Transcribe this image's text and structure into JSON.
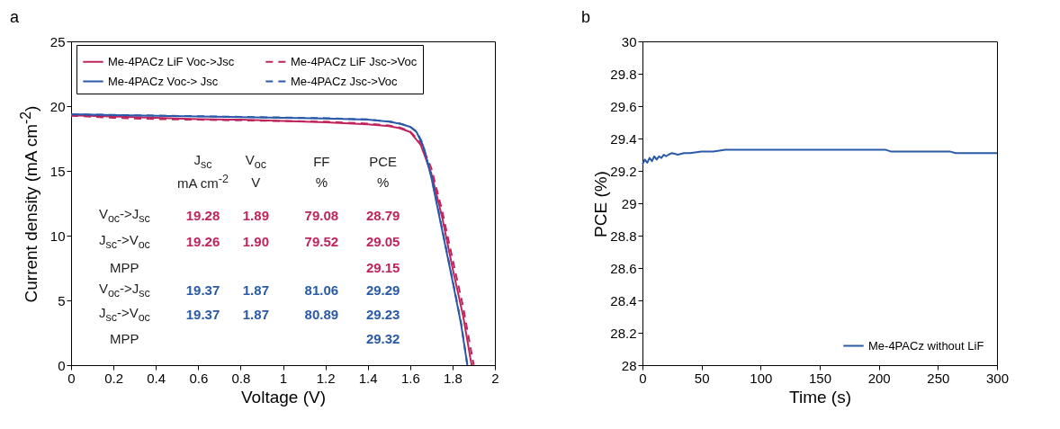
{
  "chart_data": [
    {
      "type": "line",
      "title": "a",
      "xlabel": "Voltage (V)",
      "ylabel": "Current density (mA cm$^{-2}$)",
      "xlim": [
        0,
        2
      ],
      "xticks": [
        0,
        0.2,
        0.4,
        0.6,
        0.8,
        1,
        1.2,
        1.4,
        1.6,
        1.8,
        2
      ],
      "ylim": [
        0,
        25
      ],
      "yticks": [
        0,
        5,
        10,
        15,
        20,
        25
      ],
      "legend": "top",
      "series": [
        {
          "name": "Me-4PACz LiF Voc->Jsc",
          "color": "#c0245c",
          "line_style": "solid",
          "x": [
            0,
            0.2,
            0.4,
            0.6,
            0.8,
            1,
            1.2,
            1.4,
            1.5,
            1.55,
            1.6,
            1.65,
            1.7,
            1.75,
            1.8,
            1.85,
            1.89
          ],
          "values": [
            19.28,
            19.2,
            19.1,
            19.0,
            18.95,
            18.85,
            18.75,
            18.6,
            18.45,
            18.3,
            18.0,
            17.0,
            14.8,
            11.5,
            7.5,
            3.8,
            0
          ]
        },
        {
          "name": "Me-4PACz LiF Jsc->Voc",
          "color": "#c0245c",
          "line_style": "dashed",
          "x": [
            0,
            0.2,
            0.4,
            0.6,
            0.8,
            1,
            1.2,
            1.4,
            1.5,
            1.55,
            1.6,
            1.65,
            1.7,
            1.75,
            1.8,
            1.85,
            1.9
          ],
          "values": [
            19.26,
            19.1,
            19.0,
            18.95,
            18.9,
            18.85,
            18.8,
            18.65,
            18.5,
            18.35,
            18.05,
            17.2,
            15.2,
            12.0,
            8.2,
            4.5,
            0
          ]
        },
        {
          "name": "Me-4PACz Voc-> Jsc",
          "color": "#2a5aa8",
          "line_style": "solid",
          "x": [
            0,
            0.2,
            0.4,
            0.6,
            0.8,
            1,
            1.2,
            1.4,
            1.5,
            1.55,
            1.6,
            1.63,
            1.66,
            1.7,
            1.75,
            1.8,
            1.84,
            1.87
          ],
          "values": [
            19.37,
            19.3,
            19.25,
            19.2,
            19.15,
            19.1,
            19.05,
            18.95,
            18.8,
            18.65,
            18.4,
            18.0,
            17.0,
            14.5,
            10.5,
            6.5,
            3.2,
            0
          ]
        },
        {
          "name": "Me-4PACz Jsc->Voc",
          "color": "#2a5aa8",
          "line_style": "dashed",
          "x": [
            0,
            0.2,
            0.4,
            0.6,
            0.8,
            1,
            1.2,
            1.4,
            1.5,
            1.55,
            1.6,
            1.63,
            1.66,
            1.7,
            1.75,
            1.8,
            1.84,
            1.87
          ],
          "values": [
            19.37,
            19.32,
            19.27,
            19.22,
            19.17,
            19.12,
            19.07,
            18.97,
            18.82,
            18.67,
            18.42,
            18.05,
            17.1,
            14.6,
            10.6,
            6.6,
            3.3,
            0
          ]
        }
      ],
      "annotations": [
        "J$_{sc}$",
        "V$_{oc}$",
        "FF",
        "PCE",
        "mA cm$^{-2}$",
        "V",
        "%",
        "%",
        "V$_{oc}$->J$_{sc}$",
        "19.28",
        "1.89",
        "79.08",
        "28.79",
        "J$_{sc}$->V$_{oc}$",
        "19.26",
        "1.90",
        "79.52",
        "29.05",
        "MPP",
        "29.15",
        "V$_{oc}$->J$_{sc}$",
        "19.37",
        "1.87",
        "81.06",
        "29.29",
        "J$_{sc}$->V$_{oc}$",
        "19.37",
        "1.87",
        "80.89",
        "29.23",
        "MPP",
        "29.32"
      ]
    },
    {
      "type": "line",
      "title": "b",
      "xlabel": "Time (s)",
      "ylabel": "PCE (%)",
      "xlim": [
        0,
        300
      ],
      "xticks": [
        0,
        50,
        100,
        150,
        200,
        250,
        300
      ],
      "ylim": [
        28,
        30
      ],
      "yticks": [
        28,
        28.2,
        28.4,
        28.6,
        28.8,
        29,
        29.2,
        29.4,
        29.6,
        29.8,
        30
      ],
      "legend": "bottom right",
      "series": [
        {
          "name": "Me-4PACz without LiF",
          "color": "#2a5aa8",
          "line_style": "solid",
          "x": [
            0,
            2,
            4,
            6,
            8,
            10,
            12,
            14,
            16,
            18,
            20,
            22,
            25,
            30,
            35,
            40,
            50,
            60,
            70,
            80,
            100,
            150,
            200,
            206,
            210,
            220,
            250,
            260,
            265,
            280,
            300
          ],
          "values": [
            29.24,
            29.27,
            29.25,
            29.28,
            29.26,
            29.29,
            29.27,
            29.29,
            29.28,
            29.3,
            29.29,
            29.3,
            29.31,
            29.3,
            29.31,
            29.31,
            29.32,
            29.32,
            29.33,
            29.33,
            29.33,
            29.33,
            29.33,
            29.33,
            29.32,
            29.32,
            29.32,
            29.32,
            29.31,
            29.31,
            29.31
          ]
        }
      ]
    }
  ]
}
